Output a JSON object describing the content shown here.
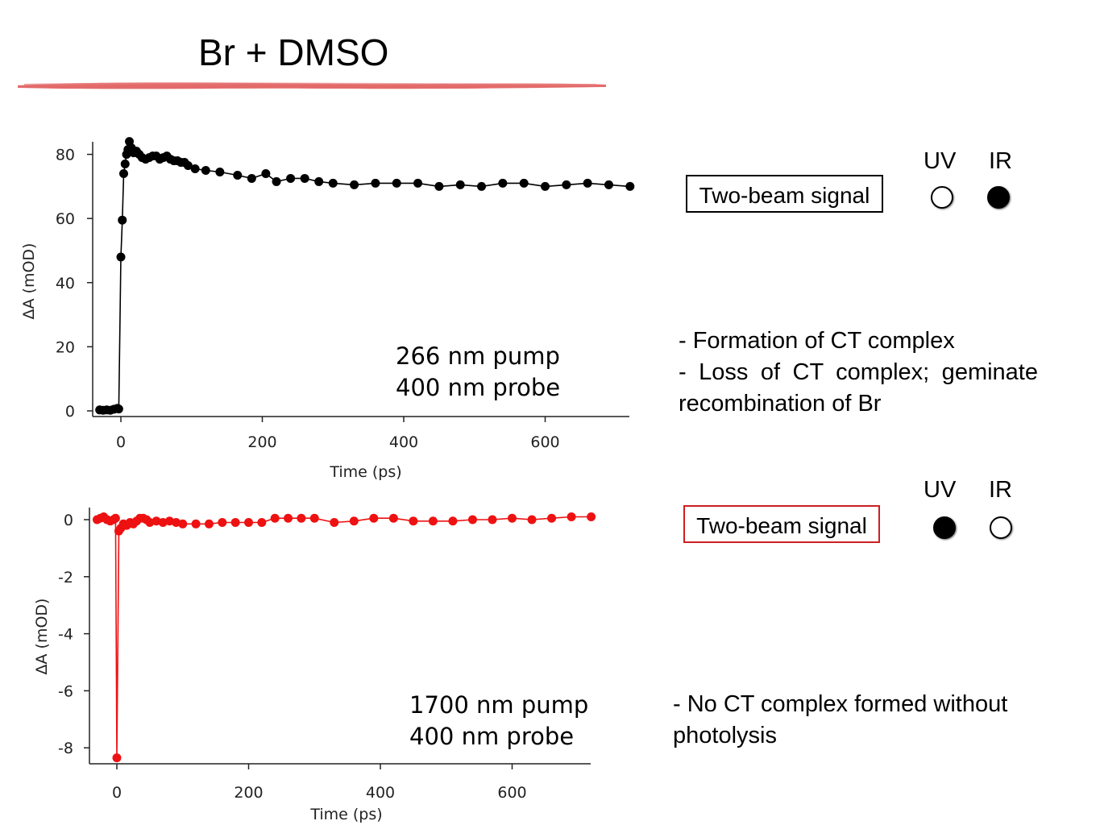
{
  "title": "Br + DMSO",
  "colors": {
    "accent": "#e05a5a",
    "black_series": "#000000",
    "red_series": "#ee1111",
    "box_red": "#cc2020"
  },
  "chart_data": [
    {
      "type": "scatter",
      "series": [
        {
          "color": "#000000",
          "x": [
            -30,
            -25,
            -20,
            -15,
            -10,
            -5,
            -3,
            0,
            2,
            4,
            6,
            8,
            10,
            12,
            15,
            18,
            22,
            26,
            30,
            35,
            40,
            45,
            50,
            55,
            60,
            65,
            70,
            75,
            80,
            85,
            90,
            95,
            105,
            120,
            140,
            165,
            185,
            205,
            220,
            240,
            260,
            280,
            300,
            330,
            360,
            390,
            420,
            450,
            480,
            510,
            540,
            570,
            600,
            630,
            660,
            690,
            720
          ],
          "y": [
            0.3,
            0.2,
            0.3,
            0.2,
            0.5,
            0.8,
            0.6,
            48,
            59.5,
            74,
            77,
            80,
            81.5,
            84,
            82,
            80.5,
            81,
            80,
            79,
            78.5,
            79,
            79.5,
            79.5,
            78.5,
            79,
            79.5,
            78.5,
            78,
            78,
            77.5,
            77.5,
            76.5,
            75.5,
            75,
            74.5,
            73.5,
            72.5,
            74,
            71.5,
            72.5,
            72.5,
            71.5,
            71,
            70.5,
            71,
            71,
            71,
            70,
            70.5,
            70,
            71,
            71,
            70,
            70.5,
            71,
            70.5,
            70
          ]
        }
      ],
      "xlabel": "Time (ps)",
      "ylabel": "ΔA (mOD)",
      "xlim": [
        -40,
        720
      ],
      "ylim": [
        -2,
        84
      ],
      "xticks": [
        "0",
        "200",
        "400",
        "600"
      ],
      "yticks": [
        "0",
        "20",
        "40",
        "60",
        "80"
      ],
      "annotation": [
        "266 nm pump",
        "400 nm probe"
      ]
    },
    {
      "type": "scatter",
      "series": [
        {
          "color": "#ee1111",
          "x": [
            -30,
            -25,
            -20,
            -15,
            -10,
            -5,
            -2,
            0,
            3,
            6,
            10,
            15,
            20,
            25,
            30,
            35,
            40,
            45,
            50,
            60,
            70,
            80,
            90,
            100,
            120,
            140,
            160,
            180,
            200,
            220,
            240,
            260,
            280,
            300,
            330,
            360,
            390,
            420,
            450,
            480,
            510,
            540,
            570,
            600,
            630,
            660,
            690,
            720
          ],
          "y": [
            0,
            0.05,
            0.1,
            0,
            -0.05,
            0,
            0.05,
            -8.35,
            -0.4,
            -0.3,
            -0.15,
            -0.2,
            -0.1,
            -0.15,
            -0.05,
            0.05,
            0.05,
            0,
            -0.1,
            -0.05,
            -0.1,
            -0.05,
            -0.1,
            -0.15,
            -0.15,
            -0.15,
            -0.1,
            -0.1,
            -0.1,
            -0.1,
            0.05,
            0.05,
            0.05,
            0.05,
            -0.1,
            -0.05,
            0.05,
            0.05,
            -0.05,
            -0.05,
            -0.05,
            0,
            0,
            0.05,
            0,
            0.05,
            0.1,
            0.1
          ]
        }
      ],
      "xlabel": "Time (ps)",
      "ylabel": "ΔA (mOD)",
      "xlim": [
        -40,
        720
      ],
      "ylim": [
        -8.6,
        0.3
      ],
      "xticks": [
        "0",
        "200",
        "400",
        "600"
      ],
      "yticks": [
        "0",
        "-2",
        "-4",
        "-6",
        "-8"
      ],
      "annotation": [
        "1700 nm pump",
        "400 nm probe"
      ]
    }
  ],
  "panel1": {
    "box_label": "Two-beam signal",
    "uv_label": "UV",
    "ir_label": "IR",
    "uv_state": "open",
    "ir_state": "filled",
    "notes": [
      "- Formation of CT complex",
      "- Loss of CT complex; geminate recombination of Br"
    ]
  },
  "panel2": {
    "box_label": "Two-beam signal",
    "uv_label": "UV",
    "ir_label": "IR",
    "uv_state": "filled",
    "ir_state": "open",
    "notes": [
      "- No CT complex formed without photolysis"
    ]
  }
}
